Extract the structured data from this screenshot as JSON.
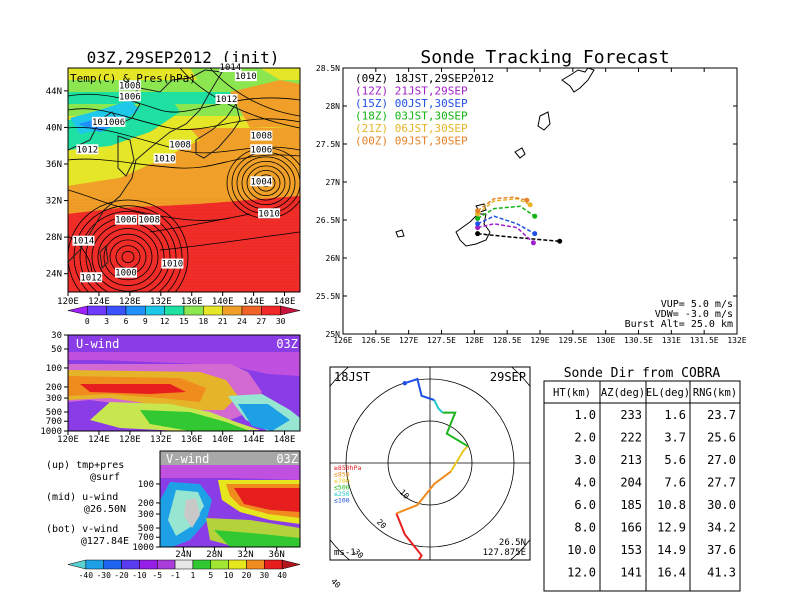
{
  "chart_data": [
    {
      "type": "heatmap",
      "title": "03Z,29SEP2012 (init)",
      "panel_label": "Temp(C) & Pres(hPa)",
      "x_ticks": [
        "120E",
        "124E",
        "128E",
        "132E",
        "136E",
        "140E",
        "144E",
        "148E"
      ],
      "y_ticks": [
        "24N",
        "28N",
        "32N",
        "36N",
        "40N",
        "44N"
      ],
      "colorbar": {
        "ticks": [
          "0",
          "3",
          "6",
          "9",
          "12",
          "15",
          "18",
          "21",
          "24",
          "27",
          "30"
        ],
        "colors": [
          "#a020ff",
          "#6e3bff",
          "#3b52ff",
          "#2090ff",
          "#1ec8e8",
          "#1ee0a0",
          "#8ce650",
          "#e6e628",
          "#f0a028",
          "#f06428",
          "#f02828",
          "#c8143c"
        ]
      },
      "isobar_labels": [
        {
          "text": "1010",
          "lon": 143,
          "lat": 45.5
        },
        {
          "text": "1008",
          "lon": 128,
          "lat": 44.5
        },
        {
          "text": "1006",
          "lon": 128,
          "lat": 43.3
        },
        {
          "text": "1008",
          "lon": 124.5,
          "lat": 40.5
        },
        {
          "text": "1006",
          "lon": 126,
          "lat": 40.5
        },
        {
          "text": "1012",
          "lon": 122.5,
          "lat": 37.5
        },
        {
          "text": "1008",
          "lon": 134.5,
          "lat": 38
        },
        {
          "text": "1010",
          "lon": 132.5,
          "lat": 36.5
        },
        {
          "text": "1008",
          "lon": 145,
          "lat": 39
        },
        {
          "text": "1006",
          "lon": 145,
          "lat": 37.5
        },
        {
          "text": "1004",
          "lon": 145,
          "lat": 34
        },
        {
          "text": "1010",
          "lon": 146,
          "lat": 30.5
        },
        {
          "text": "1006",
          "lon": 127.5,
          "lat": 29.8
        },
        {
          "text": "1008",
          "lon": 130.5,
          "lat": 29.8
        },
        {
          "text": "1014",
          "lon": 122,
          "lat": 27.5
        },
        {
          "text": "1010",
          "lon": 133.5,
          "lat": 25
        },
        {
          "text": "1000",
          "lon": 127.5,
          "lat": 24
        },
        {
          "text": "1012",
          "lon": 123,
          "lat": 23.5
        },
        {
          "text": "1014",
          "lon": 141,
          "lat": 46.5
        },
        {
          "text": "1012",
          "lon": 140.5,
          "lat": 43
        }
      ]
    },
    {
      "type": "heatmap",
      "panel_label": "U-wind",
      "time_label": "03Z",
      "x_ticks": [
        "120E",
        "124E",
        "128E",
        "132E",
        "136E",
        "140E",
        "144E",
        "148E"
      ],
      "y_ticks": [
        "30",
        "50",
        "100",
        "200",
        "300",
        "500",
        "700",
        "1000"
      ]
    },
    {
      "type": "heatmap",
      "panel_label": "V-wind",
      "time_label": "03Z",
      "x_ticks": [
        "24N",
        "28N",
        "32N",
        "36N"
      ],
      "y_ticks": [
        "100",
        "200",
        "300",
        "500",
        "700",
        "1000"
      ],
      "colorbar": {
        "ticks": [
          "-40",
          "-30",
          "-20",
          "-10",
          "-5",
          "-1",
          "1",
          "5",
          "10",
          "20",
          "30",
          "40"
        ],
        "colors": [
          "#5ad2d2",
          "#1ea0e6",
          "#1e64f0",
          "#5a3cf0",
          "#961ee6",
          "#aa3cdc",
          "#e6e6e6",
          "#32c832",
          "#a0e632",
          "#e6e61e",
          "#f08c1e",
          "#e61e1e",
          "#b4141e"
        ]
      },
      "legend_lines": [
        "(up) tmp+pres",
        "@surf",
        "(mid) u-wind",
        "@26.50N",
        "(bot) v-wind",
        "@127.84E"
      ]
    },
    {
      "type": "line",
      "title": "Sonde Tracking Forecast",
      "x_ticks": [
        "126E",
        "126.5E",
        "127E",
        "127.5E",
        "128E",
        "128.5E",
        "129E",
        "129.5E",
        "130E",
        "130.5E",
        "131E",
        "131.5E",
        "132E"
      ],
      "y_ticks": [
        "25N",
        "25.5N",
        "26N",
        "26.5N",
        "27N",
        "27.5N",
        "28N",
        "28.5N"
      ],
      "xlim": [
        126,
        132
      ],
      "ylim": [
        25,
        28.5
      ],
      "series": [
        {
          "name": "(09Z)  18JST,29SEP2012",
          "color": "#000000",
          "points": [
            [
              128.05,
              26.32
            ],
            [
              128.5,
              26.28
            ],
            [
              128.9,
              26.25
            ],
            [
              129.3,
              26.22
            ]
          ]
        },
        {
          "name": "(12Z)  21JST,29SEP",
          "color": "#a020c8",
          "points": [
            [
              128.05,
              26.4
            ],
            [
              128.3,
              26.45
            ],
            [
              128.65,
              26.4
            ],
            [
              128.9,
              26.2
            ]
          ]
        },
        {
          "name": "(15Z)  00JST,30SEP",
          "color": "#2050e6",
          "points": [
            [
              128.05,
              26.45
            ],
            [
              128.3,
              26.55
            ],
            [
              128.65,
              26.45
            ],
            [
              128.92,
              26.32
            ]
          ]
        },
        {
          "name": "(18Z)  03JST,30SEP",
          "color": "#14b414",
          "points": [
            [
              128.05,
              26.52
            ],
            [
              128.3,
              26.65
            ],
            [
              128.7,
              26.68
            ],
            [
              128.92,
              26.55
            ]
          ]
        },
        {
          "name": "(21Z)  06JST,30SEP",
          "color": "#e6b428",
          "points": [
            [
              128.05,
              26.58
            ],
            [
              128.3,
              26.75
            ],
            [
              128.65,
              26.78
            ],
            [
              128.85,
              26.7
            ]
          ]
        },
        {
          "name": "(00Z)  09JST,30SEP",
          "color": "#e68228",
          "points": [
            [
              128.05,
              26.62
            ],
            [
              128.3,
              26.78
            ],
            [
              128.6,
              26.8
            ],
            [
              128.8,
              26.76
            ]
          ]
        }
      ],
      "annotations": [
        "VUP=  5.0 m/s",
        "VDW= -3.0 m/s",
        "Burst Alt= 25.0 km"
      ]
    },
    {
      "type": "line",
      "subtype": "polar",
      "time_label": "18JST",
      "date_label": "29SEP",
      "range_ticks": [
        "10",
        "20",
        "30",
        "40"
      ],
      "unit": "ms-1",
      "location": [
        "26.5N",
        "127.875E"
      ],
      "legend": [
        {
          "label": "≥850hPa",
          "color": "#e61e1e"
        },
        {
          "label": "≤850",
          "color": "#f08c1e"
        },
        {
          "label": "≤700",
          "color": "#e6c81e"
        },
        {
          "label": "≤500",
          "color": "#1eb41e"
        },
        {
          "label": "≤250",
          "color": "#1ec8c8"
        },
        {
          "label": "≤100",
          "color": "#1e50e6"
        }
      ],
      "hodograph": [
        {
          "color": "#e61e1e",
          "points": [
            [
              -5,
              -27
            ],
            [
              -2,
              -22
            ],
            [
              -6,
              -17
            ],
            [
              -8,
              -12
            ]
          ]
        },
        {
          "color": "#f08c1e",
          "points": [
            [
              -8,
              -12
            ],
            [
              -3,
              -10
            ],
            [
              1,
              -5
            ],
            [
              5,
              -2
            ]
          ]
        },
        {
          "color": "#e6c81e",
          "points": [
            [
              5,
              -2
            ],
            [
              8,
              3
            ],
            [
              9,
              4
            ]
          ]
        },
        {
          "color": "#1eb41e",
          "points": [
            [
              9,
              4
            ],
            [
              4,
              7
            ],
            [
              6,
              12
            ],
            [
              3,
              12
            ]
          ]
        },
        {
          "color": "#1ec8c8",
          "points": [
            [
              3,
              12
            ],
            [
              2,
              13
            ],
            [
              1,
              15
            ]
          ]
        },
        {
          "color": "#1e50e6",
          "points": [
            [
              1,
              15
            ],
            [
              -2,
              16
            ],
            [
              -3,
              20
            ],
            [
              -6,
              19
            ]
          ]
        }
      ]
    },
    {
      "type": "table",
      "title": "Sonde Dir from COBRA",
      "columns": [
        "HT(km)",
        "AZ(deg)",
        "EL(deg)",
        "RNG(km)"
      ],
      "rows": [
        [
          "1.0",
          "233",
          "1.6",
          "23.7"
        ],
        [
          "2.0",
          "222",
          "3.7",
          "25.6"
        ],
        [
          "3.0",
          "213",
          "5.6",
          "27.0"
        ],
        [
          "4.0",
          "204",
          "7.6",
          "27.7"
        ],
        [
          "6.0",
          "185",
          "10.8",
          "30.0"
        ],
        [
          "8.0",
          "166",
          "12.9",
          "34.2"
        ],
        [
          "10.0",
          "153",
          "14.9",
          "37.6"
        ],
        [
          "12.0",
          "141",
          "16.4",
          "41.3"
        ]
      ]
    }
  ]
}
